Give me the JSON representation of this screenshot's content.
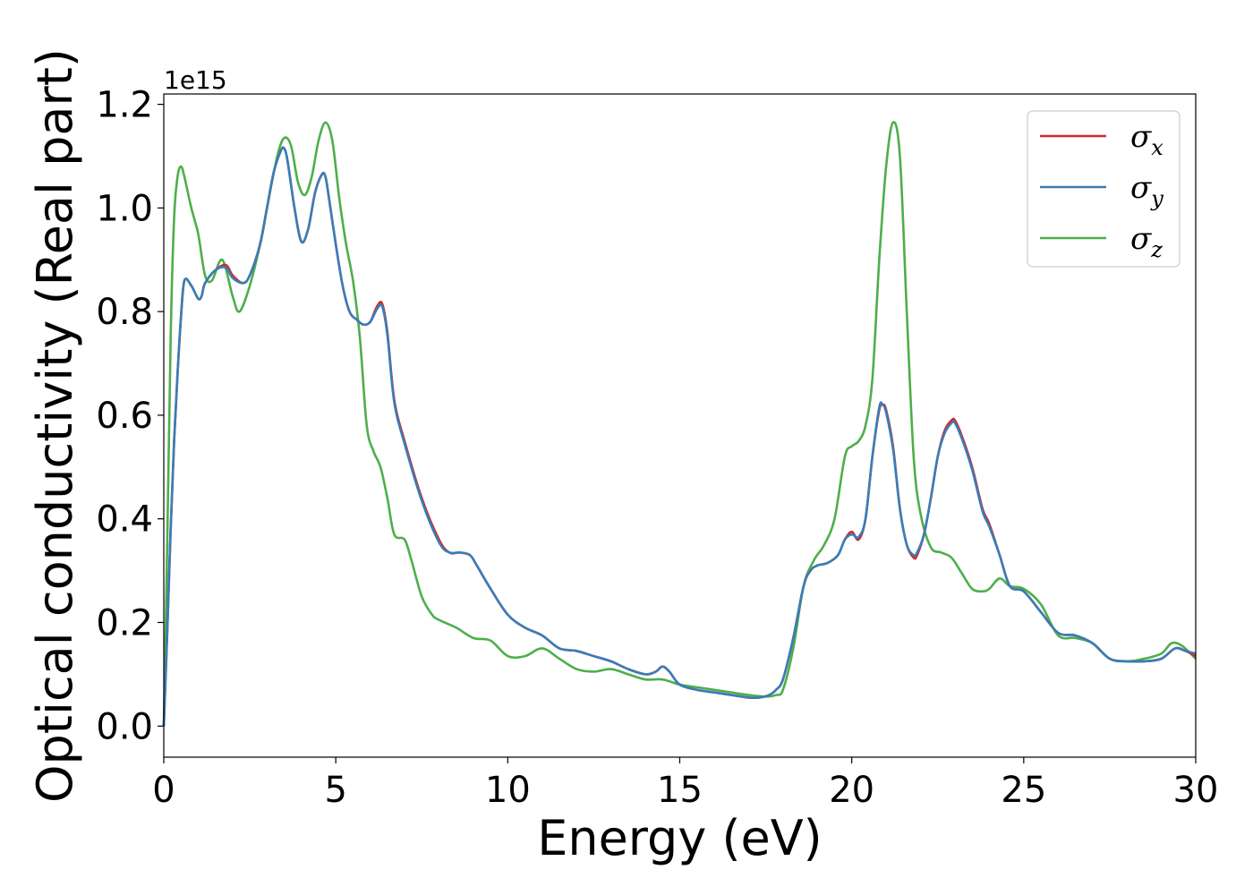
{
  "chart_data": {
    "type": "line",
    "xlabel": "Energy (eV)",
    "ylabel": "Optical conductivity (Real part)",
    "y_offset_text": "1e15",
    "y_multiplier": 1000000000000000.0,
    "xlim": [
      0,
      30
    ],
    "ylim": [
      -0.06,
      1.22
    ],
    "x_ticks": [
      0,
      5,
      10,
      15,
      20,
      25,
      30
    ],
    "x_tick_labels": [
      "0",
      "5",
      "10",
      "15",
      "20",
      "25",
      "30"
    ],
    "y_ticks": [
      0.0,
      0.2,
      0.4,
      0.6,
      0.8,
      1.0,
      1.2
    ],
    "y_tick_labels": [
      "0.0",
      "0.2",
      "0.4",
      "0.6",
      "0.8",
      "1.0",
      "1.2"
    ],
    "grid": false,
    "legend_position": "top-right",
    "series": [
      {
        "name": "σx",
        "label_main": "σ",
        "label_sub": "x",
        "color": "#d62728",
        "x": [
          0,
          0.1,
          0.2,
          0.3,
          0.4,
          0.5,
          0.6,
          0.8,
          1.0,
          1.1,
          1.2,
          1.5,
          1.8,
          2.0,
          2.3,
          2.5,
          2.8,
          3.0,
          3.2,
          3.4,
          3.5,
          3.6,
          3.8,
          4.0,
          4.2,
          4.4,
          4.6,
          4.7,
          4.8,
          5.0,
          5.2,
          5.4,
          5.6,
          5.8,
          6.0,
          6.2,
          6.35,
          6.5,
          6.7,
          7.0,
          7.5,
          8.0,
          8.3,
          8.6,
          8.9,
          9.1,
          9.5,
          10.0,
          10.5,
          11.0,
          11.5,
          12.0,
          12.5,
          13.0,
          13.5,
          14.0,
          14.3,
          14.5,
          14.7,
          15.0,
          15.5,
          16.0,
          16.5,
          17.0,
          17.3,
          17.6,
          17.8,
          18.0,
          18.3,
          18.6,
          18.8,
          19.0,
          19.3,
          19.6,
          19.8,
          20.0,
          20.2,
          20.4,
          20.6,
          20.8,
          20.9,
          21.0,
          21.2,
          21.4,
          21.6,
          21.8,
          21.9,
          22.1,
          22.3,
          22.5,
          22.7,
          22.9,
          23.0,
          23.2,
          23.5,
          23.8,
          24.0,
          24.3,
          24.6,
          25.0,
          25.5,
          26.0,
          26.5,
          27.0,
          27.5,
          28.0,
          28.5,
          29.0,
          29.4,
          29.7,
          30.0
        ],
        "values": [
          0.0,
          0.18,
          0.38,
          0.55,
          0.68,
          0.79,
          0.86,
          0.85,
          0.825,
          0.83,
          0.855,
          0.88,
          0.89,
          0.87,
          0.855,
          0.87,
          0.93,
          1.0,
          1.07,
          1.11,
          1.115,
          1.09,
          1.0,
          0.935,
          0.96,
          1.03,
          1.065,
          1.06,
          1.02,
          0.93,
          0.85,
          0.8,
          0.785,
          0.775,
          0.78,
          0.81,
          0.815,
          0.76,
          0.63,
          0.55,
          0.44,
          0.36,
          0.335,
          0.335,
          0.33,
          0.31,
          0.265,
          0.215,
          0.19,
          0.175,
          0.15,
          0.145,
          0.135,
          0.125,
          0.11,
          0.1,
          0.105,
          0.115,
          0.105,
          0.08,
          0.07,
          0.065,
          0.06,
          0.055,
          0.055,
          0.06,
          0.07,
          0.09,
          0.17,
          0.27,
          0.3,
          0.31,
          0.315,
          0.33,
          0.36,
          0.375,
          0.36,
          0.4,
          0.52,
          0.61,
          0.62,
          0.61,
          0.54,
          0.42,
          0.35,
          0.325,
          0.33,
          0.37,
          0.44,
          0.52,
          0.57,
          0.59,
          0.59,
          0.56,
          0.5,
          0.42,
          0.39,
          0.33,
          0.27,
          0.26,
          0.22,
          0.18,
          0.175,
          0.16,
          0.13,
          0.125,
          0.125,
          0.13,
          0.15,
          0.145,
          0.135
        ]
      },
      {
        "name": "σy",
        "label_main": "σ",
        "label_sub": "y",
        "color": "#377eb8",
        "x": [
          0,
          0.1,
          0.2,
          0.3,
          0.4,
          0.5,
          0.6,
          0.8,
          1.0,
          1.1,
          1.2,
          1.5,
          1.8,
          2.0,
          2.3,
          2.5,
          2.8,
          3.0,
          3.2,
          3.4,
          3.5,
          3.6,
          3.8,
          4.0,
          4.2,
          4.4,
          4.6,
          4.7,
          4.8,
          5.0,
          5.2,
          5.4,
          5.6,
          5.8,
          6.0,
          6.2,
          6.35,
          6.5,
          6.7,
          7.0,
          7.5,
          8.0,
          8.3,
          8.6,
          8.9,
          9.1,
          9.5,
          10.0,
          10.5,
          11.0,
          11.5,
          12.0,
          12.5,
          13.0,
          13.5,
          14.0,
          14.3,
          14.5,
          14.7,
          15.0,
          15.5,
          16.0,
          16.5,
          17.0,
          17.3,
          17.6,
          17.8,
          18.0,
          18.3,
          18.6,
          18.8,
          19.0,
          19.3,
          19.6,
          19.8,
          20.0,
          20.2,
          20.4,
          20.6,
          20.8,
          20.9,
          21.0,
          21.2,
          21.4,
          21.6,
          21.8,
          21.9,
          22.1,
          22.3,
          22.5,
          22.7,
          22.9,
          23.0,
          23.2,
          23.5,
          23.8,
          24.0,
          24.3,
          24.6,
          25.0,
          25.5,
          26.0,
          26.5,
          27.0,
          27.5,
          28.0,
          28.5,
          29.0,
          29.4,
          29.7,
          30.0
        ],
        "values": [
          0.0,
          0.18,
          0.38,
          0.55,
          0.68,
          0.79,
          0.86,
          0.85,
          0.825,
          0.83,
          0.855,
          0.88,
          0.885,
          0.865,
          0.855,
          0.87,
          0.93,
          1.0,
          1.07,
          1.11,
          1.115,
          1.09,
          1.0,
          0.935,
          0.96,
          1.03,
          1.065,
          1.06,
          1.02,
          0.93,
          0.85,
          0.8,
          0.785,
          0.775,
          0.78,
          0.805,
          0.81,
          0.755,
          0.625,
          0.545,
          0.435,
          0.355,
          0.335,
          0.335,
          0.33,
          0.31,
          0.265,
          0.215,
          0.19,
          0.175,
          0.15,
          0.145,
          0.135,
          0.125,
          0.11,
          0.1,
          0.105,
          0.115,
          0.105,
          0.08,
          0.07,
          0.065,
          0.06,
          0.055,
          0.055,
          0.06,
          0.07,
          0.09,
          0.17,
          0.27,
          0.3,
          0.31,
          0.315,
          0.33,
          0.36,
          0.37,
          0.365,
          0.4,
          0.52,
          0.615,
          0.62,
          0.605,
          0.535,
          0.42,
          0.35,
          0.33,
          0.335,
          0.37,
          0.44,
          0.52,
          0.565,
          0.585,
          0.585,
          0.555,
          0.495,
          0.415,
          0.385,
          0.33,
          0.27,
          0.26,
          0.22,
          0.18,
          0.175,
          0.16,
          0.13,
          0.125,
          0.125,
          0.13,
          0.15,
          0.145,
          0.14
        ]
      },
      {
        "name": "σz",
        "label_main": "σ",
        "label_sub": "z",
        "color": "#4daf4a",
        "x": [
          0,
          0.1,
          0.2,
          0.3,
          0.4,
          0.5,
          0.6,
          0.8,
          1.0,
          1.2,
          1.4,
          1.7,
          2.0,
          2.2,
          2.5,
          2.8,
          3.0,
          3.3,
          3.5,
          3.7,
          3.9,
          4.1,
          4.3,
          4.5,
          4.7,
          4.9,
          5.1,
          5.3,
          5.5,
          5.7,
          5.9,
          6.1,
          6.3,
          6.5,
          6.7,
          7.0,
          7.2,
          7.5,
          7.8,
          8.0,
          8.5,
          9.0,
          9.5,
          10.0,
          10.5,
          11.0,
          11.5,
          12.0,
          12.5,
          13.0,
          13.5,
          14.0,
          14.5,
          15.0,
          15.5,
          16.0,
          16.5,
          17.0,
          17.5,
          17.8,
          18.0,
          18.3,
          18.6,
          18.9,
          19.2,
          19.5,
          19.8,
          20.0,
          20.2,
          20.4,
          20.6,
          20.8,
          21.0,
          21.2,
          21.4,
          21.6,
          21.8,
          22.0,
          22.3,
          22.6,
          22.9,
          23.2,
          23.5,
          23.8,
          24.0,
          24.3,
          24.6,
          25.0,
          25.5,
          26.0,
          26.5,
          27.0,
          27.5,
          28.0,
          28.5,
          29.0,
          29.3,
          29.6,
          30.0
        ],
        "values": [
          0.0,
          0.35,
          0.75,
          0.98,
          1.06,
          1.08,
          1.06,
          1.0,
          0.95,
          0.87,
          0.86,
          0.9,
          0.83,
          0.8,
          0.85,
          0.93,
          1.0,
          1.1,
          1.135,
          1.12,
          1.05,
          1.025,
          1.06,
          1.13,
          1.165,
          1.13,
          1.02,
          0.93,
          0.86,
          0.75,
          0.58,
          0.53,
          0.5,
          0.44,
          0.37,
          0.36,
          0.32,
          0.25,
          0.215,
          0.205,
          0.19,
          0.17,
          0.165,
          0.135,
          0.135,
          0.15,
          0.13,
          0.11,
          0.105,
          0.11,
          0.1,
          0.09,
          0.09,
          0.08,
          0.075,
          0.07,
          0.065,
          0.06,
          0.057,
          0.06,
          0.07,
          0.15,
          0.27,
          0.32,
          0.35,
          0.4,
          0.52,
          0.54,
          0.55,
          0.58,
          0.67,
          0.9,
          1.08,
          1.165,
          1.1,
          0.8,
          0.52,
          0.41,
          0.345,
          0.335,
          0.325,
          0.295,
          0.265,
          0.26,
          0.265,
          0.285,
          0.27,
          0.265,
          0.235,
          0.175,
          0.17,
          0.16,
          0.13,
          0.125,
          0.13,
          0.14,
          0.16,
          0.155,
          0.13
        ]
      }
    ]
  }
}
